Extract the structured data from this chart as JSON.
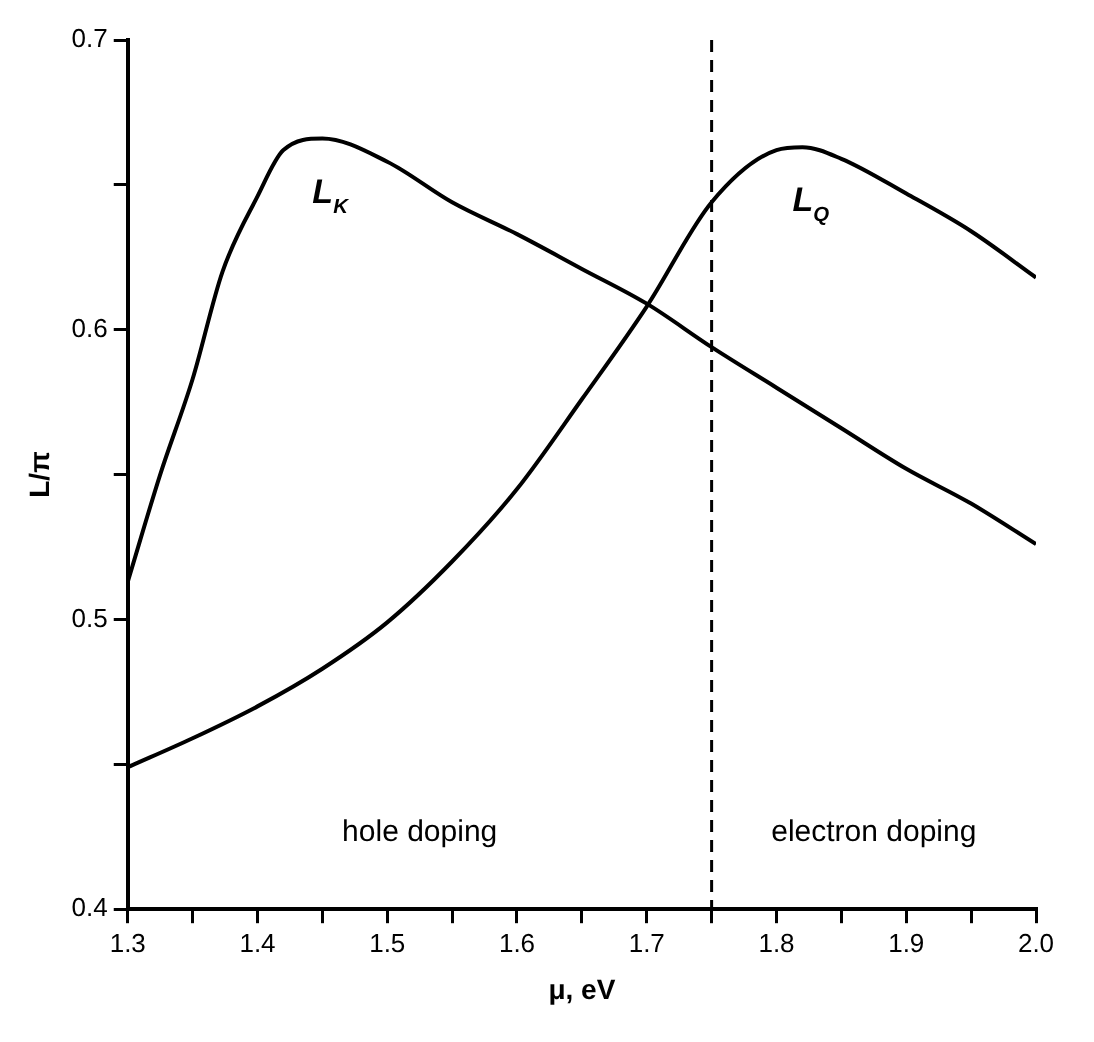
{
  "chart_data": {
    "type": "line",
    "xlabel": "μ, eV",
    "ylabel": "L/π",
    "series": [
      {
        "name": "L$_{K}$",
        "color": "#000000",
        "x": [
          1.3,
          1.325,
          1.35,
          1.373,
          1.4,
          1.42,
          1.45,
          1.5,
          1.55,
          1.6,
          1.65,
          1.7,
          1.75,
          1.8,
          1.85,
          1.9,
          1.95,
          2.0
        ],
        "values": [
          0.513,
          0.55,
          0.583,
          0.62,
          0.646,
          0.662,
          0.666,
          0.658,
          0.644,
          0.633,
          0.621,
          0.609,
          0.594,
          0.58,
          0.566,
          0.552,
          0.54,
          0.526
        ]
      },
      {
        "name": "L$_{Q}$",
        "color": "#000000",
        "x": [
          1.3,
          1.35,
          1.4,
          1.45,
          1.5,
          1.55,
          1.6,
          1.65,
          1.7,
          1.75,
          1.8,
          1.82,
          1.85,
          1.9,
          1.95,
          2.0
        ],
        "values": [
          0.449,
          0.459,
          0.47,
          0.483,
          0.499,
          0.52,
          0.545,
          0.576,
          0.608,
          0.644,
          0.662,
          0.663,
          0.659,
          0.647,
          0.634,
          0.618
        ]
      }
    ],
    "xlim": [
      1.3,
      2.0
    ],
    "ylim": [
      0.4,
      0.7
    ],
    "xticks": [
      1.3,
      {
        "value": 1.35,
        "label": null
      },
      1.4,
      {
        "value": 1.45,
        "label": null
      },
      1.5,
      {
        "value": 1.55,
        "label": null
      },
      1.6,
      {
        "value": 1.65,
        "label": null
      },
      1.7,
      {
        "value": 1.75,
        "label": null
      },
      1.8,
      {
        "value": 1.85,
        "label": null
      },
      1.9,
      {
        "value": 1.95,
        "label": null
      },
      {
        "value": 2.0,
        "label": "2.0"
      }
    ],
    "yticks": [
      0.4,
      {
        "value": 0.45,
        "label": null
      },
      0.5,
      {
        "value": 0.55,
        "label": null
      },
      0.6,
      {
        "value": 0.65,
        "label": null
      },
      0.7
    ],
    "ref_lines": [
      {
        "axis": "x",
        "value": 1.75,
        "line_style": "dashed",
        "color": "#000000"
      }
    ],
    "annotations": [
      "hole doping",
      "electron doping"
    ],
    "grid": false,
    "legend": false,
    "marker": "none",
    "line_style": "solid"
  }
}
